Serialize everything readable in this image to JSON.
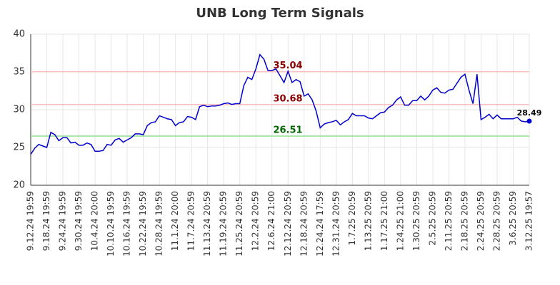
{
  "chart_data": {
    "type": "line",
    "title": "UNB Long Term Signals",
    "categories": [
      "9.12.24 19:59",
      null,
      null,
      null,
      "9.18.24 19:59",
      null,
      null,
      null,
      "9.24.24 19:59",
      null,
      null,
      null,
      "9.30.24 19:59",
      null,
      null,
      null,
      "10.4.24 20:00",
      null,
      null,
      null,
      "10.10.24 19:59",
      null,
      null,
      null,
      "10.16.24 19:59",
      null,
      null,
      null,
      "10.22.24 19:59",
      null,
      null,
      null,
      "10.28.24 19:59",
      null,
      null,
      null,
      "11.1.24 20:00",
      null,
      null,
      null,
      "11.7.24 20:59",
      null,
      null,
      null,
      "11.13.24 20:59",
      null,
      null,
      null,
      "11.19.24 20:59",
      null,
      null,
      null,
      "11.25.24 20:59",
      null,
      null,
      null,
      "12.2.24 20:59",
      null,
      null,
      null,
      "12.6.24 21:00",
      null,
      null,
      null,
      "12.12.24 20:59",
      null,
      null,
      null,
      "12.18.24 20:59",
      null,
      null,
      null,
      "12.24.24 17:59",
      null,
      null,
      null,
      "12.31.24 20:59",
      null,
      null,
      null,
      "1.7.25 20:59",
      null,
      null,
      null,
      "1.13.25 20:59",
      null,
      null,
      null,
      "1.17.25 21:00",
      null,
      null,
      null,
      "1.24.25 21:00",
      null,
      null,
      null,
      "1.30.25 20:59",
      null,
      null,
      null,
      "2.5.25 20:59",
      null,
      null,
      null,
      "2.11.25 20:59",
      null,
      null,
      null,
      "2.18.25 20:59",
      null,
      null,
      null,
      "2.24.25 20:59",
      null,
      null,
      null,
      "2.28.25 20:59",
      null,
      null,
      null,
      "3.6.25 20:59",
      null,
      null,
      null,
      "3.12.25 19:57"
    ],
    "series": [
      {
        "color": "#0000cc",
        "values": [
          24.1,
          24.9,
          25.4,
          25.2,
          25.0,
          27.0,
          26.7,
          25.9,
          26.3,
          26.3,
          25.6,
          25.7,
          25.3,
          25.3,
          25.6,
          25.4,
          24.5,
          24.5,
          24.6,
          25.4,
          25.3,
          26.0,
          26.2,
          25.7,
          26.0,
          26.3,
          26.8,
          26.8,
          26.7,
          27.9,
          28.3,
          28.4,
          29.2,
          29.0,
          28.8,
          28.7,
          27.9,
          28.3,
          28.4,
          29.1,
          29.0,
          28.7,
          30.4,
          30.6,
          30.4,
          30.5,
          30.5,
          30.6,
          30.8,
          30.9,
          30.7,
          30.8,
          30.8,
          33.2,
          34.3,
          34.0,
          35.4,
          37.3,
          36.7,
          35.2,
          35.2,
          35.4,
          34.5,
          33.6,
          35.1,
          33.6,
          34.0,
          33.7,
          31.8,
          32.1,
          31.3,
          29.8,
          27.6,
          28.1,
          28.3,
          28.4,
          28.6,
          28.0,
          28.4,
          28.7,
          29.5,
          29.2,
          29.2,
          29.2,
          28.9,
          28.8,
          29.2,
          29.6,
          29.7,
          30.3,
          30.6,
          31.3,
          31.7,
          30.6,
          30.6,
          31.2,
          31.2,
          31.8,
          31.3,
          31.8,
          32.6,
          32.9,
          32.3,
          32.2,
          32.6,
          32.7,
          33.5,
          34.3,
          34.7,
          32.6,
          30.8,
          34.7,
          28.7,
          29.0,
          29.4,
          28.8,
          29.3,
          28.8,
          28.8,
          28.8,
          28.8,
          29.0,
          28.5,
          28.4,
          28.49
        ]
      }
    ],
    "hlines": [
      {
        "value": 35.04,
        "color": "#ffc0c0",
        "label_color": "#8b0000"
      },
      {
        "value": 30.68,
        "color": "#ffc0c0",
        "label_color": "#8b0000"
      },
      {
        "value": 26.51,
        "color": "#90e090",
        "label_color": "#006400"
      }
    ],
    "ylim": [
      20,
      40
    ],
    "yticks": [
      20,
      25,
      30,
      35,
      40
    ],
    "grid": true
  }
}
